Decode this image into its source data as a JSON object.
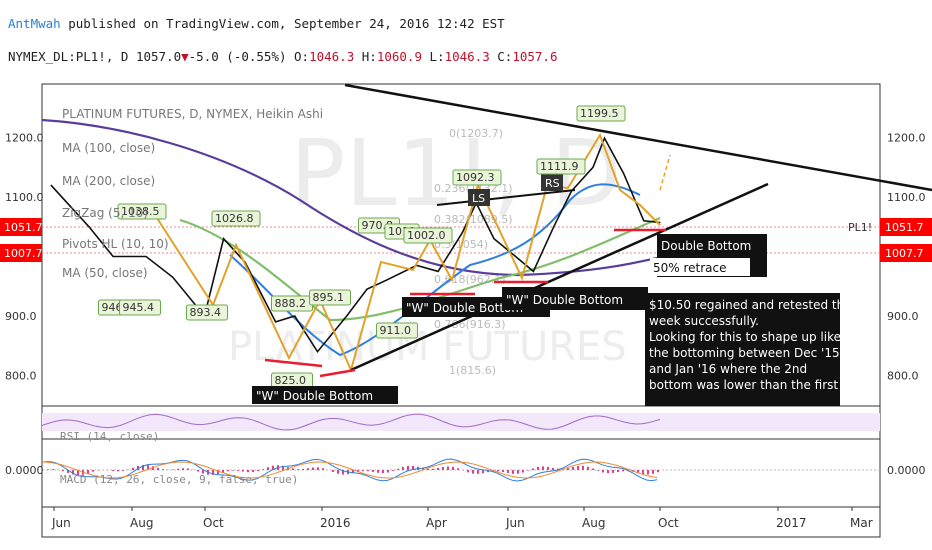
{
  "header": {
    "author": "AntMwah",
    "published_text": " published on TradingView.com, September 24, 2016 12:42 EST",
    "symbol": "NYMEX_DL:PL1!, D",
    "last": "1057.0",
    "change": "-5.0 (-0.55%)",
    "o_label": "O:",
    "o_value": "1046.3",
    "h_label": "H:",
    "h_value": "1060.9",
    "l_label": "L:",
    "l_value": "1046.3",
    "c_label": "C:",
    "c_value": "1057.6",
    "down_arrow": "▼"
  },
  "legend": {
    "title": "PLATINUM FUTURES, D, NYMEX, Heikin Ashi",
    "ma100": "MA (100, close)",
    "ma200": "MA (200, close)",
    "zigzag": "ZigZag (5, 10)",
    "pivots": "Pivots HL (10, 10)",
    "ma50": "MA (50, close)"
  },
  "watermark": {
    "big": "PL1!, D",
    "sub": "PLATINUM FUTURES"
  },
  "price_tags": {
    "left_top": "1051.7",
    "left_bottom": "1007.7",
    "right_top": "1051.7",
    "right_bottom": "1007.7",
    "symbol_tag": "PL1!"
  },
  "fib_labels": [
    "0(1203.7)",
    "0.236(1132.1)",
    "0.382(1089.5)",
    "0.5(1054)",
    "0.618(962.1)",
    "0.786(916.3)",
    "1(815.6)"
  ],
  "annotations": {
    "w1": "\"W\" Double Bottom",
    "w2": "\"W\" Double Bottom",
    "w3": "\"W\" Double Bottom",
    "db": "Double Bottom",
    "retrace": "50% retrace",
    "note_lines": [
      "$10.50 regained and retested this",
      "week successfully.",
      "Looking for this to shape up like",
      "the bottoming between Dec '15",
      "and Jan '16 where the 2nd",
      "bottom was lower than the first"
    ],
    "ls": "LS",
    "rs": "RS"
  },
  "pivot_labels": [
    {
      "text": "1038.5"
    },
    {
      "text": "946"
    },
    {
      "text": "945.4"
    },
    {
      "text": "893.4"
    },
    {
      "text": "1026.8"
    },
    {
      "text": "888.2"
    },
    {
      "text": "895.1"
    },
    {
      "text": "825.0"
    },
    {
      "text": "970.8"
    },
    {
      "text": "911.0"
    },
    {
      "text": "1011"
    },
    {
      "text": "1002.0"
    },
    {
      "text": "1092.3"
    },
    {
      "text": "1111.9"
    },
    {
      "text": "1199.5"
    }
  ],
  "indicators": {
    "rsi_label": "RSI (14, close)",
    "macd_label": "MACD (12, 26, close, 9, false, true)",
    "macd_zero": "0.0000",
    "macd_zero_right": "0.0000"
  },
  "colors": {
    "price": "#111111",
    "ma50": "#2f7fe0",
    "ma100": "#7fbe6a",
    "ma200": "#5a3d9a",
    "zigzag": "#e2a22a",
    "fib": "#e05060",
    "tag_bg": "#ff0000",
    "rsi": "#a06bc8",
    "macd_hist": "#e0408a"
  },
  "chart_data": {
    "type": "line",
    "title": "PLATINUM FUTURES, D, NYMEX, Heikin Ashi",
    "symbol": "PL1!",
    "xlabel": "",
    "ylabel": "",
    "ylim": [
      750,
      1260
    ],
    "y_ticks": [
      "1200.0",
      "1100.0",
      "900.0",
      "800.0"
    ],
    "x_ticks": [
      "Jun",
      "Aug",
      "Oct",
      "2016",
      "Apr",
      "Jun",
      "Aug",
      "Oct",
      "2017",
      "Mar"
    ],
    "series": [
      {
        "name": "PLATINUM FUTURES",
        "x": [
          "2015-06-01",
          "2015-07-01",
          "2015-07-20",
          "2015-08-15",
          "2015-09-05",
          "2015-09-30",
          "2015-10-15",
          "2015-11-01",
          "2015-11-25",
          "2015-12-10",
          "2015-12-28",
          "2016-01-20",
          "2016-02-05",
          "2016-02-20",
          "2016-03-15",
          "2016-04-01",
          "2016-04-20",
          "2016-05-01",
          "2016-05-15",
          "2016-06-01",
          "2016-06-15",
          "2016-07-01",
          "2016-07-15",
          "2016-08-01",
          "2016-08-10",
          "2016-08-25",
          "2016-09-10",
          "2016-09-23"
        ],
        "values": [
          1120,
          1050,
          1000,
          1000,
          965,
          900,
          1030,
          990,
          890,
          900,
          840,
          900,
          945,
          960,
          985,
          975,
          1040,
          1090,
          1030,
          1000,
          975,
          1050,
          1110,
          1150,
          1199,
          1140,
          1060,
          1057
        ]
      }
    ]
  }
}
